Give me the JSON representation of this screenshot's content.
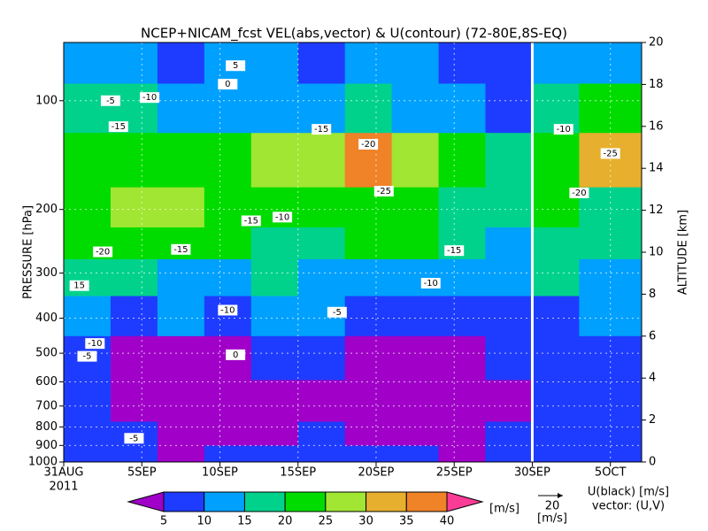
{
  "chart_data": {
    "type": "heatmap",
    "title": "NCEP+NICAM_fcst VEL(abs,vector) & U(contour)  (72-80E,8S-EQ)",
    "ylabel": "PRESSURE [hPa]",
    "y2label": "ALTITUDE [km]",
    "x": [
      1.5,
      4.5,
      7.5,
      10.5,
      13.5,
      16.5,
      19.5,
      22.5,
      25.5,
      28.5,
      31.5,
      34.5
    ],
    "xlim": [
      0,
      37
    ],
    "xticks": [
      {
        "value": 0,
        "label": "31AUG"
      },
      {
        "value": 5,
        "label": "5SEP"
      },
      {
        "value": 10,
        "label": "10SEP"
      },
      {
        "value": 15,
        "label": "15SEP"
      },
      {
        "value": 20,
        "label": "20SEP"
      },
      {
        "value": 25,
        "label": "25SEP"
      },
      {
        "value": 30,
        "label": "30SEP"
      },
      {
        "value": 35,
        "label": "5OCT"
      }
    ],
    "x_year_label": "2011",
    "levels": [
      950,
      850,
      700,
      500,
      400,
      300,
      250,
      200,
      150,
      100,
      80
    ],
    "ylim": [
      1000,
      69
    ],
    "yticks": [
      100,
      200,
      300,
      400,
      500,
      600,
      700,
      800,
      900,
      1000
    ],
    "log_y": true,
    "y2lim": [
      0,
      20
    ],
    "y2ticks": [
      0,
      2,
      4,
      6,
      8,
      10,
      12,
      14,
      16,
      18,
      20
    ],
    "grid": true,
    "divider_x": 30,
    "values": [
      [
        6,
        7,
        4,
        6,
        5,
        7,
        6,
        5,
        4,
        6,
        8,
        7
      ],
      [
        7,
        6,
        4,
        3,
        4,
        6,
        4,
        3,
        3,
        5,
        6,
        7
      ],
      [
        6,
        4,
        3,
        3,
        4,
        3,
        4,
        3,
        3,
        4,
        5,
        6
      ],
      [
        8,
        4,
        3,
        3,
        6,
        7,
        3,
        3,
        3,
        6,
        5,
        7
      ],
      [
        12,
        9,
        11,
        8,
        10,
        12,
        6,
        5,
        7,
        9,
        8,
        10
      ],
      [
        18,
        16,
        14,
        13,
        16,
        12,
        14,
        12,
        10,
        12,
        15,
        13
      ],
      [
        21,
        22,
        23,
        22,
        18,
        16,
        20,
        22,
        16,
        14,
        18,
        16
      ],
      [
        20,
        26,
        27,
        24,
        20,
        22,
        24,
        20,
        18,
        16,
        20,
        17
      ],
      [
        24,
        23,
        22,
        22,
        28,
        25,
        37,
        26,
        22,
        18,
        22,
        33
      ],
      [
        15,
        18,
        14,
        12,
        13,
        12,
        16,
        10,
        12,
        8,
        16,
        22
      ],
      [
        12,
        10,
        8,
        10,
        12,
        8,
        14,
        10,
        6,
        8,
        12,
        10
      ]
    ],
    "colorbar": {
      "levels": [
        5,
        10,
        15,
        20,
        25,
        30,
        35,
        40
      ],
      "colors": [
        "#a000c8",
        "#1e3cff",
        "#00a0ff",
        "#00d28c",
        "#00dc00",
        "#a0e632",
        "#e6af2d",
        "#f08228",
        "#fa3c96"
      ],
      "unit": "[m/s]"
    },
    "contour_labels": [
      {
        "x": 11,
        "p": 80,
        "value": 5
      },
      {
        "x": 10.5,
        "p": 90,
        "value": 0
      },
      {
        "x": 3,
        "p": 100,
        "value": -5
      },
      {
        "x": 5.5,
        "p": 98,
        "value": -10
      },
      {
        "x": 3.5,
        "p": 118,
        "value": -15
      },
      {
        "x": 19.5,
        "p": 132,
        "value": -20
      },
      {
        "x": 20.5,
        "p": 178,
        "value": -25
      },
      {
        "x": 12,
        "p": 215,
        "value": -15
      },
      {
        "x": 14,
        "p": 210,
        "value": -10
      },
      {
        "x": 2.5,
        "p": 262,
        "value": -20
      },
      {
        "x": 7.5,
        "p": 258,
        "value": -15
      },
      {
        "x": 25,
        "p": 260,
        "value": -15
      },
      {
        "x": 23.5,
        "p": 320,
        "value": -10
      },
      {
        "x": 1,
        "p": 325,
        "value": 15
      },
      {
        "x": 10.5,
        "p": 380,
        "value": -10
      },
      {
        "x": 17.5,
        "p": 385,
        "value": -5
      },
      {
        "x": 2,
        "p": 470,
        "value": -10
      },
      {
        "x": 1.5,
        "p": 510,
        "value": -5
      },
      {
        "x": 11,
        "p": 505,
        "value": 0
      },
      {
        "x": 16.5,
        "p": 120,
        "value": -15
      },
      {
        "x": 35,
        "p": 140,
        "value": -25
      },
      {
        "x": 32,
        "p": 120,
        "value": -10
      },
      {
        "x": 33,
        "p": 180,
        "value": -20
      },
      {
        "x": 4.5,
        "p": 860,
        "value": -5
      }
    ],
    "vector_legend": {
      "value": 20,
      "unit": "[m/s]"
    },
    "legend_text": [
      "U(black) [m/s]",
      "vector: (U,V)"
    ]
  }
}
